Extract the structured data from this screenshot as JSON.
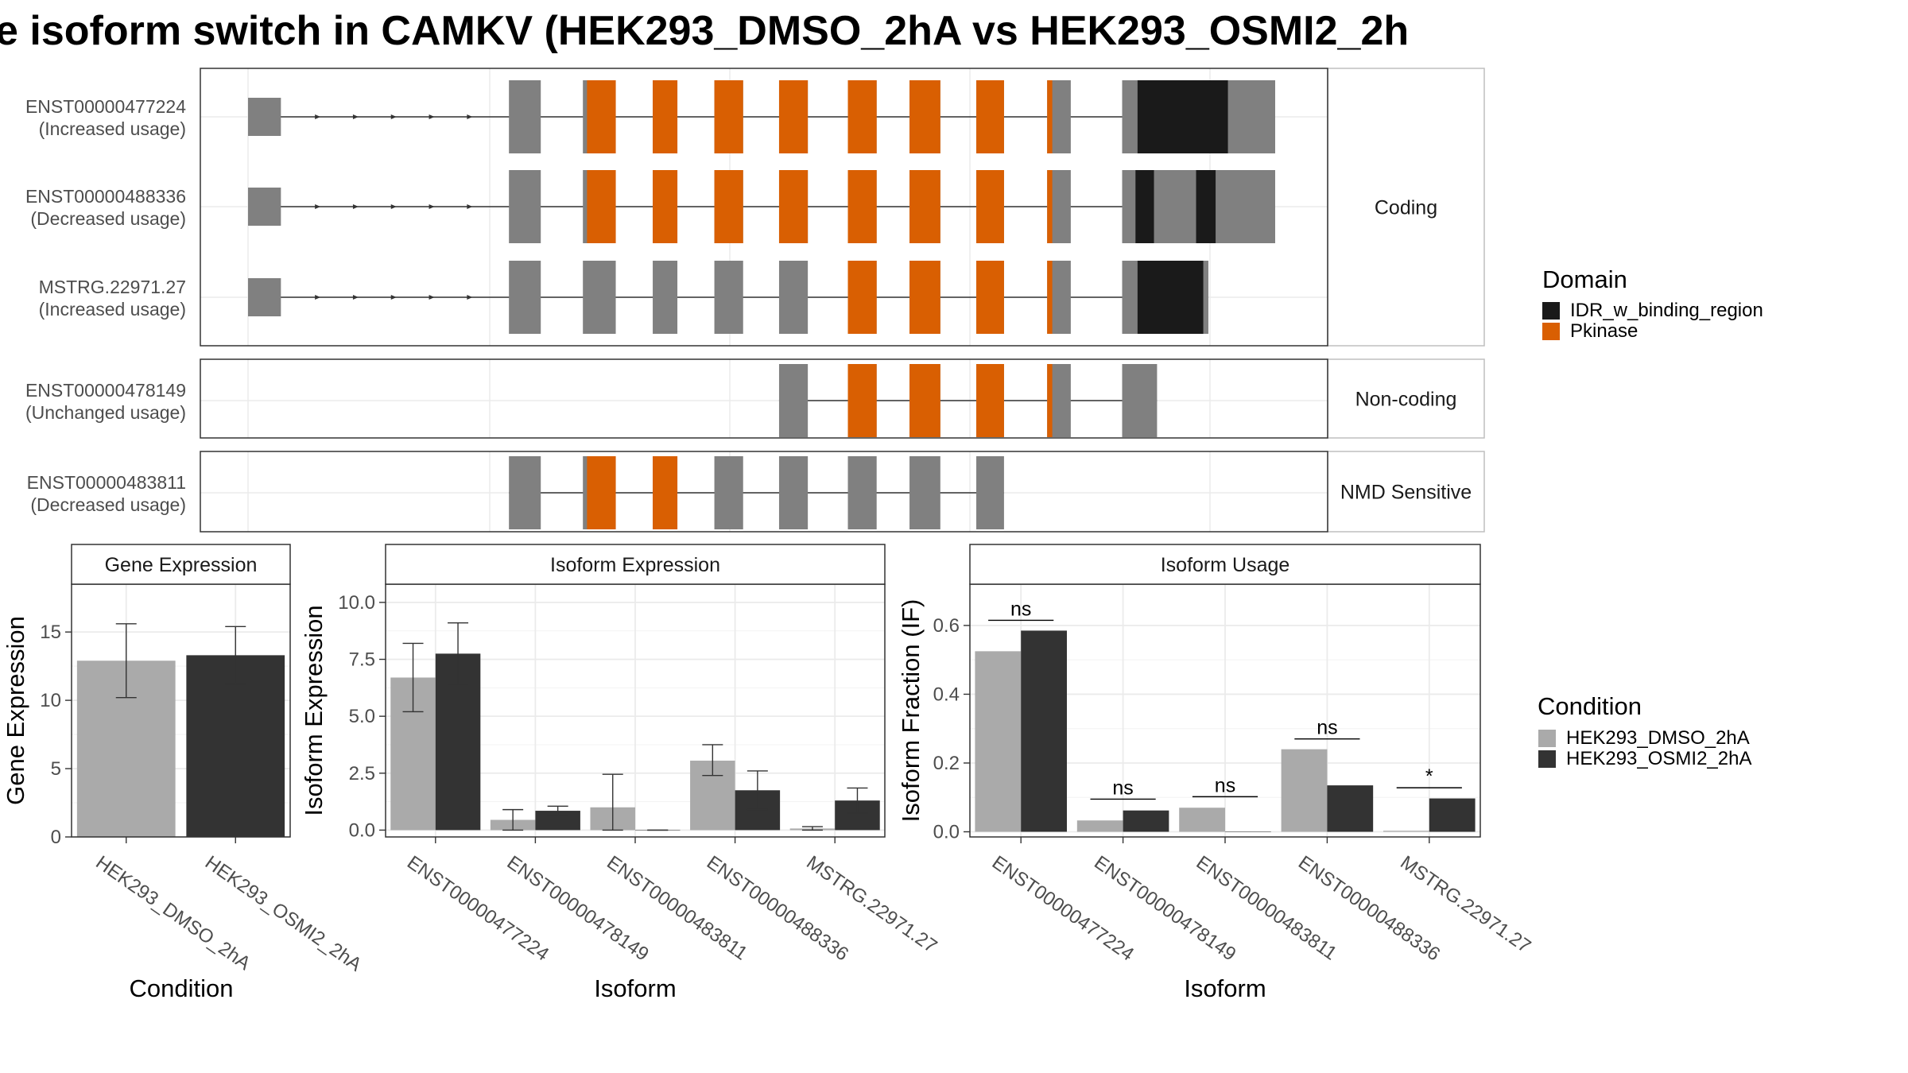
{
  "title": "e isoform switch in CAMKV (HEK293_DMSO_2hA vs HEK293_OSMI2_2h",
  "colors": {
    "exon": "#808080",
    "pkinase": "#D95F02",
    "idr": "#1A1A1A",
    "dmso": "#AAAAAA",
    "osmi2": "#333333",
    "panel_border": "#333333",
    "strip_border": "#BFBFBF",
    "grid": "#EBEBEB"
  },
  "isoform_panels": [
    {
      "strip_label": "Coding",
      "tracks": [
        {
          "id": "ENST00000477224",
          "usage": "(Increased usage)",
          "exons": [
            [
              0.0,
              0.032
            ],
            [
              0.254,
              0.285
            ],
            [
              0.326,
              0.358
            ],
            [
              0.394,
              0.418
            ],
            [
              0.454,
              0.482
            ],
            [
              0.517,
              0.545
            ],
            [
              0.584,
              0.612
            ],
            [
              0.644,
              0.674
            ],
            [
              0.709,
              0.736
            ],
            [
              0.778,
              0.801
            ],
            [
              0.851,
              1.0
            ]
          ],
          "intron_arrows": true,
          "pkinase": [
            [
              0.33,
              0.358
            ],
            [
              0.394,
              0.418
            ],
            [
              0.454,
              0.482
            ],
            [
              0.517,
              0.545
            ],
            [
              0.584,
              0.612
            ],
            [
              0.644,
              0.674
            ],
            [
              0.709,
              0.736
            ],
            [
              0.778,
              0.783
            ]
          ],
          "idr": [
            [
              0.866,
              0.954
            ]
          ]
        },
        {
          "id": "ENST00000488336",
          "usage": "(Decreased usage)",
          "exons": [
            [
              0.0,
              0.032
            ],
            [
              0.254,
              0.285
            ],
            [
              0.326,
              0.358
            ],
            [
              0.394,
              0.418
            ],
            [
              0.454,
              0.482
            ],
            [
              0.517,
              0.545
            ],
            [
              0.584,
              0.612
            ],
            [
              0.644,
              0.674
            ],
            [
              0.709,
              0.736
            ],
            [
              0.778,
              0.801
            ],
            [
              0.851,
              1.0
            ]
          ],
          "intron_arrows": true,
          "pkinase": [
            [
              0.33,
              0.358
            ],
            [
              0.394,
              0.418
            ],
            [
              0.454,
              0.482
            ],
            [
              0.517,
              0.545
            ],
            [
              0.584,
              0.612
            ],
            [
              0.644,
              0.674
            ],
            [
              0.709,
              0.736
            ],
            [
              0.778,
              0.783
            ]
          ],
          "idr": [
            [
              0.864,
              0.882
            ],
            [
              0.923,
              0.942
            ]
          ]
        },
        {
          "id": "MSTRG.22971.27",
          "usage": "(Increased usage)",
          "exons": [
            [
              0.0,
              0.032
            ],
            [
              0.254,
              0.285
            ],
            [
              0.326,
              0.358
            ],
            [
              0.394,
              0.418
            ],
            [
              0.454,
              0.482
            ],
            [
              0.517,
              0.545
            ],
            [
              0.584,
              0.612
            ],
            [
              0.644,
              0.674
            ],
            [
              0.709,
              0.736
            ],
            [
              0.778,
              0.801
            ],
            [
              0.851,
              0.935
            ]
          ],
          "intron_arrows": true,
          "pkinase": [
            [
              0.584,
              0.612
            ],
            [
              0.644,
              0.674
            ],
            [
              0.709,
              0.736
            ],
            [
              0.778,
              0.783
            ]
          ],
          "idr": [
            [
              0.866,
              0.93
            ]
          ]
        }
      ]
    },
    {
      "strip_label": "Non-coding",
      "tracks": [
        {
          "id": "ENST00000478149",
          "usage": "(Unchanged usage)",
          "exons": [
            [
              0.517,
              0.545
            ],
            [
              0.584,
              0.612
            ],
            [
              0.644,
              0.674
            ],
            [
              0.709,
              0.736
            ],
            [
              0.778,
              0.801
            ],
            [
              0.851,
              0.885
            ]
          ],
          "intron_arrows": false,
          "pkinase": [
            [
              0.584,
              0.612
            ],
            [
              0.644,
              0.674
            ],
            [
              0.709,
              0.736
            ],
            [
              0.778,
              0.783
            ]
          ],
          "idr": []
        }
      ]
    },
    {
      "strip_label": "NMD Sensitive",
      "tracks": [
        {
          "id": "ENST00000483811",
          "usage": "(Decreased usage)",
          "exons": [
            [
              0.254,
              0.285
            ],
            [
              0.326,
              0.358
            ],
            [
              0.394,
              0.418
            ],
            [
              0.454,
              0.482
            ],
            [
              0.517,
              0.545
            ],
            [
              0.584,
              0.612
            ],
            [
              0.644,
              0.674
            ],
            [
              0.709,
              0.736
            ]
          ],
          "intron_arrows": false,
          "pkinase": [
            [
              0.33,
              0.358
            ],
            [
              0.394,
              0.418
            ]
          ],
          "idr": []
        }
      ]
    }
  ],
  "legends": {
    "domain": {
      "title": "Domain",
      "items": [
        "IDR_w_binding_region",
        "Pkinase"
      ]
    },
    "condition": {
      "title": "Condition",
      "items": [
        "HEK293_DMSO_2hA",
        "HEK293_OSMI2_2hA"
      ]
    }
  },
  "chart_data": [
    {
      "type": "bar",
      "strip_title": "Gene Expression",
      "xlabel": "Condition",
      "ylabel": "Gene Expression",
      "ylim": [
        0,
        18.5
      ],
      "yticks": [
        0,
        5,
        10,
        15
      ],
      "categories": [
        "HEK293_DMSO_2hA",
        "HEK293_OSMI2_2hA"
      ],
      "series": [
        {
          "name": "HEK293_DMSO_2hA",
          "values": [
            12.9,
            null
          ],
          "err": [
            [
              10.2,
              15.6
            ],
            null
          ]
        },
        {
          "name": "HEK293_OSMI2_2hA",
          "values": [
            null,
            13.3
          ],
          "err": [
            null,
            [
              11.2,
              15.4
            ]
          ]
        }
      ],
      "grouped": false,
      "grid": true
    },
    {
      "type": "bar",
      "strip_title": "Isoform Expression",
      "xlabel": "Isoform",
      "ylabel": "Isoform Expression",
      "ylim": [
        -0.3,
        10.8
      ],
      "yticks": [
        0.0,
        2.5,
        5.0,
        7.5,
        10.0
      ],
      "ytick_labels": [
        "0.0",
        "2.5",
        "5.0",
        "7.5",
        "10.0"
      ],
      "categories": [
        "ENST00000477224",
        "ENST00000478149",
        "ENST00000483811",
        "ENST00000488336",
        "MSTRG.22971.27"
      ],
      "series": [
        {
          "name": "HEK293_DMSO_2hA",
          "values": [
            6.7,
            0.45,
            1.0,
            3.05,
            0.07
          ],
          "err": [
            [
              5.2,
              8.2
            ],
            [
              0.0,
              0.9
            ],
            [
              0.0,
              2.45
            ],
            [
              2.4,
              3.75
            ],
            [
              0.0,
              0.15
            ]
          ]
        },
        {
          "name": "HEK293_OSMI2_2hA",
          "values": [
            7.75,
            0.85,
            0.0,
            1.75,
            1.3
          ],
          "err": [
            [
              6.4,
              9.1
            ],
            [
              0.65,
              1.05
            ],
            [
              0.0,
              0.0
            ],
            [
              0.9,
              2.6
            ],
            [
              0.75,
              1.85
            ]
          ]
        }
      ],
      "grouped": true,
      "grid": true
    },
    {
      "type": "bar",
      "strip_title": "Isoform Usage",
      "xlabel": "Isoform",
      "ylabel": "Isoform Fraction (IF)",
      "ylim": [
        -0.015,
        0.72
      ],
      "yticks": [
        0.0,
        0.2,
        0.4,
        0.6
      ],
      "ytick_labels": [
        "0.0",
        "0.2",
        "0.4",
        "0.6"
      ],
      "categories": [
        "ENST00000477224",
        "ENST00000478149",
        "ENST00000483811",
        "ENST00000488336",
        "MSTRG.22971.27"
      ],
      "series": [
        {
          "name": "HEK293_DMSO_2hA",
          "values": [
            0.525,
            0.033,
            0.07,
            0.24,
            0.003
          ]
        },
        {
          "name": "HEK293_OSMI2_2hA",
          "values": [
            0.585,
            0.062,
            0.0,
            0.135,
            0.097
          ]
        }
      ],
      "significance": [
        "ns",
        "ns",
        "ns",
        "ns",
        "*"
      ],
      "sig_y": [
        0.615,
        0.095,
        0.102,
        0.27,
        0.128
      ],
      "grouped": true,
      "grid": true
    }
  ]
}
